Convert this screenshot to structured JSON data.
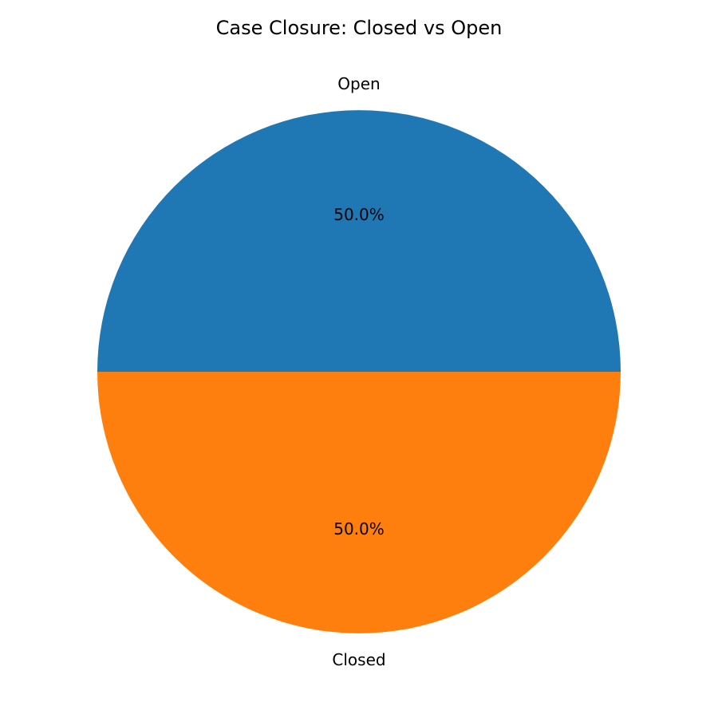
{
  "chart_data": {
    "type": "pie",
    "title": "Case Closure: Closed vs Open",
    "slices": [
      {
        "label": "Open",
        "value": 50.0,
        "pct_label": "50.0%",
        "color": "#1f77b4"
      },
      {
        "label": "Closed",
        "value": 50.0,
        "pct_label": "50.0%",
        "color": "#ff7f0e"
      }
    ],
    "legend": "none"
  }
}
